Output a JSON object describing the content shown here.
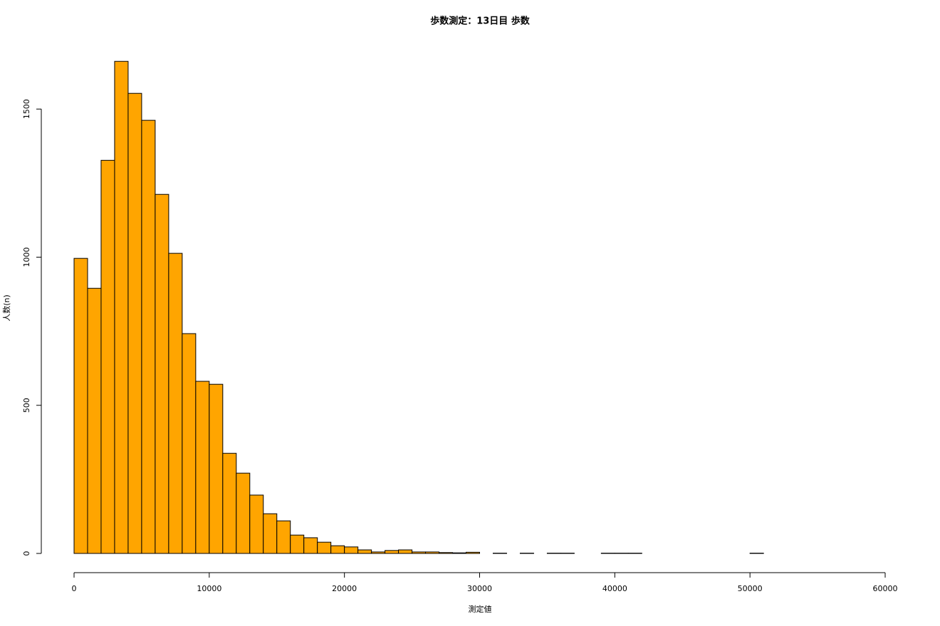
{
  "chart_data": {
    "type": "histogram",
    "title": "歩数測定：13日目 歩数",
    "xlabel": "測定値",
    "ylabel": "人数(n)",
    "bins": [
      0,
      1000,
      2000,
      3000,
      4000,
      5000,
      6000,
      7000,
      8000,
      9000,
      10000,
      11000,
      12000,
      13000,
      14000,
      15000,
      16000,
      17000,
      18000,
      19000,
      20000,
      21000,
      22000,
      23000,
      24000,
      25000,
      26000,
      27000,
      28000,
      29000,
      30000,
      31000,
      32000,
      33000,
      34000,
      35000,
      36000,
      37000,
      38000,
      39000,
      40000,
      41000,
      42000,
      43000,
      44000,
      45000,
      46000,
      47000,
      48000,
      49000,
      50000,
      51000
    ],
    "values": [
      996,
      895,
      1327,
      1661,
      1553,
      1462,
      1212,
      1013,
      742,
      581,
      571,
      338,
      271,
      197,
      134,
      110,
      62,
      53,
      38,
      26,
      22,
      12,
      5,
      10,
      12,
      5,
      5,
      3,
      2,
      4,
      0,
      1,
      0,
      1,
      0,
      1,
      1,
      0,
      0,
      1,
      1,
      1,
      0,
      0,
      0,
      0,
      0,
      0,
      0,
      0,
      1
    ],
    "color": "#ffa500",
    "xlim": [
      0,
      60000
    ],
    "xticks": [
      0,
      10000,
      20000,
      30000,
      40000,
      50000,
      60000
    ],
    "ylim": [
      0,
      1700
    ],
    "yticks": [
      0,
      500,
      1000,
      1500
    ]
  }
}
